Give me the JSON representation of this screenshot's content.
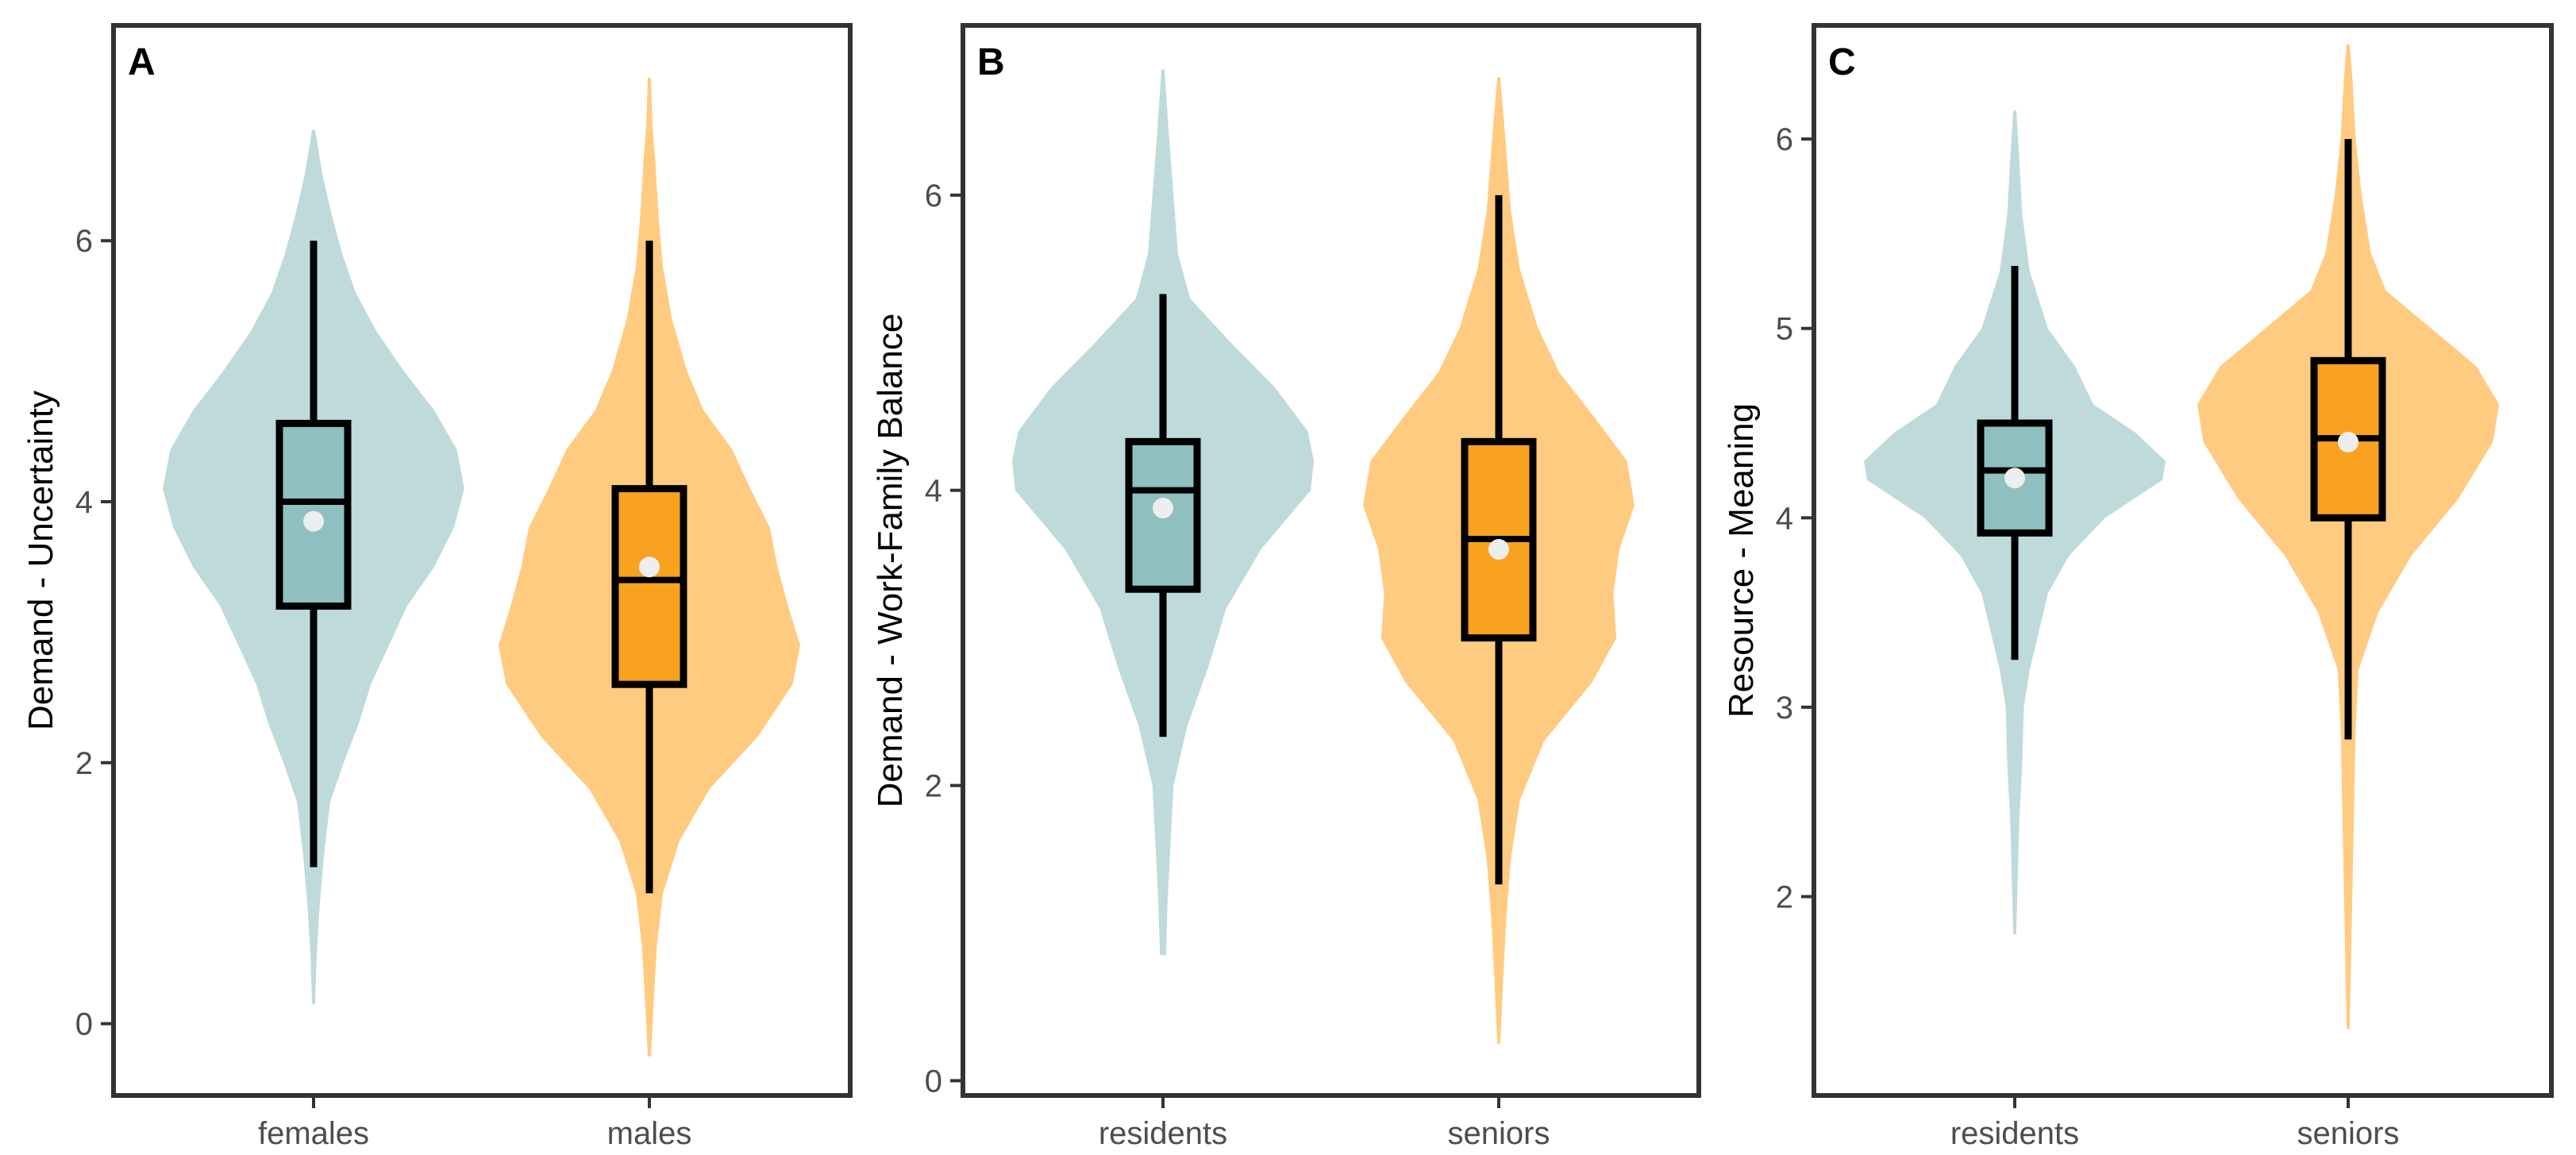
{
  "colors": {
    "violin_group1": "#bfdadb",
    "violin_group2": "#ffcb80",
    "box_group1": "#8fbfbf",
    "box_group2": "#f9a21f",
    "mean_point": "#eeeeee"
  },
  "chart_data": [
    {
      "type": "violin",
      "tag": "A",
      "ylabel": "Demand - Uncertainty",
      "categories": [
        "females",
        "males"
      ],
      "ylim": [
        -0.55,
        7.65
      ],
      "yticks": [
        0,
        2,
        4,
        6
      ],
      "ytick_labels": [
        "0",
        "2",
        "4",
        "6"
      ],
      "groups": [
        {
          "name": "females",
          "range": [
            0.15,
            6.85
          ],
          "density": [
            [
              0.15,
              0.01
            ],
            [
              0.5,
              0.02
            ],
            [
              0.9,
              0.04
            ],
            [
              1.3,
              0.07
            ],
            [
              1.7,
              0.11
            ],
            [
              2.0,
              0.2
            ],
            [
              2.3,
              0.3
            ],
            [
              2.6,
              0.38
            ],
            [
              2.9,
              0.5
            ],
            [
              3.2,
              0.62
            ],
            [
              3.5,
              0.8
            ],
            [
              3.8,
              0.93
            ],
            [
              4.1,
              1.0
            ],
            [
              4.4,
              0.95
            ],
            [
              4.7,
              0.8
            ],
            [
              5.0,
              0.6
            ],
            [
              5.3,
              0.42
            ],
            [
              5.6,
              0.28
            ],
            [
              5.9,
              0.19
            ],
            [
              6.2,
              0.12
            ],
            [
              6.5,
              0.06
            ],
            [
              6.85,
              0.01
            ]
          ],
          "box": {
            "q1": 3.2,
            "median": 4.0,
            "q3": 4.6,
            "whisker_low": 1.2,
            "whisker_high": 6.0
          },
          "mean": 3.85
        },
        {
          "name": "males",
          "range": [
            -0.25,
            7.25
          ],
          "density": [
            [
              -0.25,
              0.01
            ],
            [
              0.2,
              0.03
            ],
            [
              0.6,
              0.05
            ],
            [
              1.0,
              0.09
            ],
            [
              1.4,
              0.2
            ],
            [
              1.8,
              0.4
            ],
            [
              2.2,
              0.72
            ],
            [
              2.6,
              0.95
            ],
            [
              2.9,
              1.0
            ],
            [
              3.2,
              0.92
            ],
            [
              3.5,
              0.85
            ],
            [
              3.8,
              0.8
            ],
            [
              4.1,
              0.67
            ],
            [
              4.4,
              0.55
            ],
            [
              4.7,
              0.36
            ],
            [
              5.0,
              0.25
            ],
            [
              5.4,
              0.15
            ],
            [
              5.8,
              0.09
            ],
            [
              6.2,
              0.06
            ],
            [
              6.6,
              0.04
            ],
            [
              6.9,
              0.02
            ],
            [
              7.25,
              0.01
            ]
          ],
          "box": {
            "q1": 2.6,
            "median": 3.4,
            "q3": 4.1,
            "whisker_low": 1.0,
            "whisker_high": 6.0
          },
          "mean": 3.5
        }
      ]
    },
    {
      "type": "violin",
      "tag": "B",
      "ylabel": "Demand - Work-Family Balance",
      "categories": [
        "residents",
        "seniors"
      ],
      "ylim": [
        -0.1,
        7.15
      ],
      "yticks": [
        0,
        2,
        4,
        6
      ],
      "ytick_labels": [
        "0",
        "2",
        "4",
        "6"
      ],
      "groups": [
        {
          "name": "residents",
          "range": [
            0.85,
            6.85
          ],
          "density": [
            [
              0.85,
              0.02
            ],
            [
              1.2,
              0.03
            ],
            [
              1.6,
              0.05
            ],
            [
              2.0,
              0.07
            ],
            [
              2.4,
              0.16
            ],
            [
              2.8,
              0.3
            ],
            [
              3.2,
              0.42
            ],
            [
              3.6,
              0.65
            ],
            [
              4.0,
              0.98
            ],
            [
              4.2,
              1.0
            ],
            [
              4.4,
              0.96
            ],
            [
              4.7,
              0.74
            ],
            [
              5.0,
              0.45
            ],
            [
              5.3,
              0.18
            ],
            [
              5.6,
              0.1
            ],
            [
              6.0,
              0.07
            ],
            [
              6.4,
              0.04
            ],
            [
              6.85,
              0.01
            ]
          ],
          "box": {
            "q1": 3.33,
            "median": 4.0,
            "q3": 4.33,
            "whisker_low": 2.33,
            "whisker_high": 5.33
          },
          "mean": 3.88
        },
        {
          "name": "seniors",
          "range": [
            0.25,
            6.8
          ],
          "density": [
            [
              0.25,
              0.01
            ],
            [
              0.7,
              0.03
            ],
            [
              1.1,
              0.05
            ],
            [
              1.5,
              0.08
            ],
            [
              1.9,
              0.14
            ],
            [
              2.3,
              0.3
            ],
            [
              2.7,
              0.62
            ],
            [
              3.0,
              0.78
            ],
            [
              3.3,
              0.76
            ],
            [
              3.6,
              0.8
            ],
            [
              3.9,
              0.9
            ],
            [
              4.2,
              0.85
            ],
            [
              4.5,
              0.63
            ],
            [
              4.8,
              0.4
            ],
            [
              5.1,
              0.26
            ],
            [
              5.5,
              0.14
            ],
            [
              5.9,
              0.08
            ],
            [
              6.3,
              0.05
            ],
            [
              6.8,
              0.01
            ]
          ],
          "box": {
            "q1": 3.0,
            "median": 3.67,
            "q3": 4.33,
            "whisker_low": 1.33,
            "whisker_high": 6.0
          },
          "mean": 3.6
        }
      ]
    },
    {
      "type": "violin",
      "tag": "C",
      "ylabel": "Resource - Meaning",
      "categories": [
        "residents",
        "seniors"
      ],
      "ylim": [
        0.95,
        6.6
      ],
      "yticks": [
        2,
        3,
        4,
        5,
        6
      ],
      "ytick_labels": [
        "2",
        "3",
        "4",
        "5",
        "6"
      ],
      "groups": [
        {
          "name": "residents",
          "range": [
            1.8,
            6.15
          ],
          "density": [
            [
              1.8,
              0.01
            ],
            [
              2.1,
              0.02
            ],
            [
              2.4,
              0.03
            ],
            [
              2.7,
              0.05
            ],
            [
              3.0,
              0.06
            ],
            [
              3.2,
              0.1
            ],
            [
              3.4,
              0.16
            ],
            [
              3.6,
              0.22
            ],
            [
              3.8,
              0.36
            ],
            [
              4.0,
              0.6
            ],
            [
              4.2,
              0.98
            ],
            [
              4.3,
              1.0
            ],
            [
              4.45,
              0.8
            ],
            [
              4.6,
              0.52
            ],
            [
              4.8,
              0.4
            ],
            [
              5.0,
              0.22
            ],
            [
              5.3,
              0.1
            ],
            [
              5.6,
              0.05
            ],
            [
              5.9,
              0.03
            ],
            [
              6.15,
              0.01
            ]
          ],
          "box": {
            "q1": 3.92,
            "median": 4.25,
            "q3": 4.5,
            "whisker_low": 3.25,
            "whisker_high": 5.33
          },
          "mean": 4.21
        },
        {
          "name": "seniors",
          "range": [
            1.3,
            6.5
          ],
          "density": [
            [
              1.3,
              0.01
            ],
            [
              1.7,
              0.02
            ],
            [
              2.1,
              0.03
            ],
            [
              2.5,
              0.04
            ],
            [
              2.9,
              0.05
            ],
            [
              3.2,
              0.07
            ],
            [
              3.5,
              0.2
            ],
            [
              3.8,
              0.42
            ],
            [
              4.1,
              0.73
            ],
            [
              4.4,
              0.96
            ],
            [
              4.6,
              1.0
            ],
            [
              4.8,
              0.85
            ],
            [
              5.0,
              0.55
            ],
            [
              5.2,
              0.25
            ],
            [
              5.4,
              0.15
            ],
            [
              5.7,
              0.09
            ],
            [
              6.0,
              0.05
            ],
            [
              6.3,
              0.03
            ],
            [
              6.5,
              0.01
            ]
          ],
          "box": {
            "q1": 4.0,
            "median": 4.42,
            "q3": 4.83,
            "whisker_low": 2.83,
            "whisker_high": 6.0
          },
          "mean": 4.4
        }
      ]
    }
  ]
}
